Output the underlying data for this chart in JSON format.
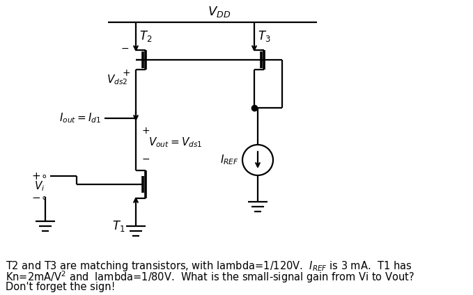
{
  "bg_color": "#ffffff",
  "text_color": "#000000",
  "fig_width": 6.79,
  "fig_height": 4.24,
  "dpi": 100,
  "vdd_label": "$V_{DD}$",
  "vds2_label": "$V_{ds2}$",
  "iout_label": "$I_{out} = I_{d1}$",
  "vout_label": "$V_{out} = V_{ds1}$",
  "vi_label": "$V_i$",
  "t1_label": "$T_1$",
  "t2_label": "$T_2$",
  "t3_label": "$T_3$",
  "iref_label": "$I_{REF}$",
  "caption1": "T2 and T3 are matching transistors, with lambda=1/120V.  $I_{REF}$ is 3 mA.  T1 has",
  "caption2": "Kn=2mA/V$^2$ and  lambda=1/80V.  What is the small-signal gain from Vi to Vout?",
  "caption3": "Don't forget the sign!"
}
